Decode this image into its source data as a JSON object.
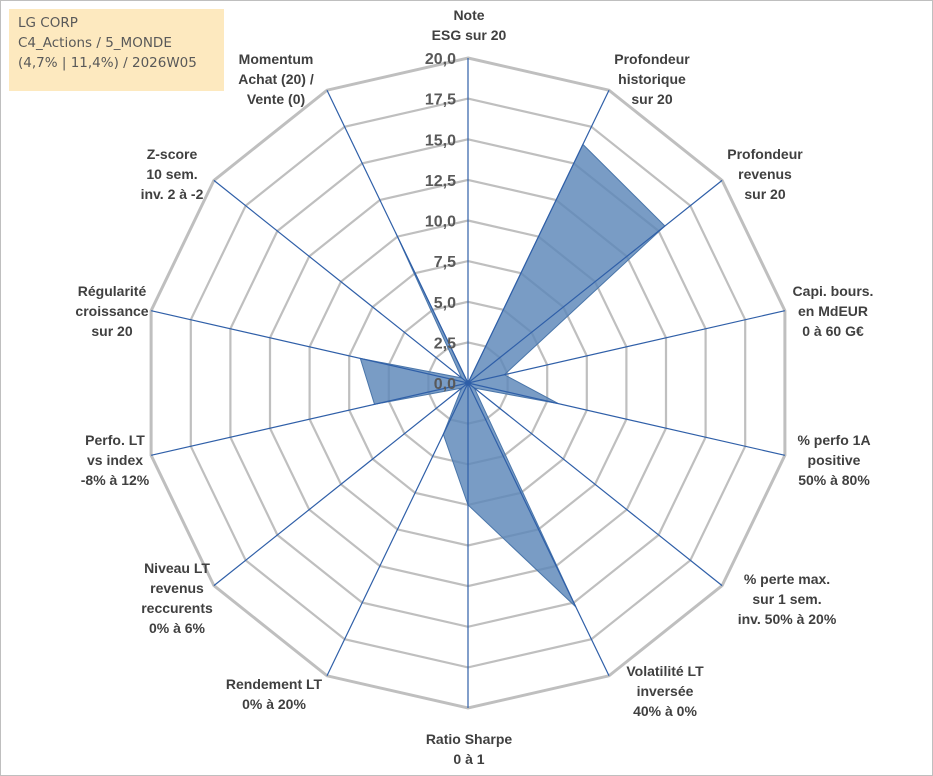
{
  "info_box": {
    "line1": "LG CORP",
    "line2": "C4_Actions / 5_MONDE",
    "line3": "(4,7% | 11,4%) / 2026W05"
  },
  "chart_data": {
    "type": "radar",
    "title": "",
    "rlim": [
      0,
      20
    ],
    "r_ticks": [
      "0,0",
      "2,5",
      "5,0",
      "7,5",
      "10,0",
      "12,5",
      "15,0",
      "17,5",
      "20,0"
    ],
    "grid": true,
    "legend": "none",
    "colors": {
      "fill": "#5b86b8",
      "grid": "#bfbfbf",
      "spoke": "#2f5fa8"
    },
    "axes": [
      [
        "Note",
        "ESG sur 20"
      ],
      [
        "Profondeur",
        "historique",
        "sur 20"
      ],
      [
        "Profondeur",
        "revenus",
        "sur 20"
      ],
      [
        "Capi. bours.",
        "en MdEUR",
        "0 à 60 G€"
      ],
      [
        "% perfo 1A",
        "positive",
        "50% à 80%"
      ],
      [
        "% perte max.",
        "sur 1 sem.",
        "inv. 50% à 20%"
      ],
      [
        "Volatilité LT",
        "inversée",
        "40% à 0%"
      ],
      [
        "Ratio Sharpe",
        "0 à 1"
      ],
      [
        "Rendement LT",
        "0% à 20%"
      ],
      [
        "Niveau LT",
        "revenus",
        "reccurents",
        "0% à 6%"
      ],
      [
        "Perfo. LT",
        "vs index",
        "-8% à 12%"
      ],
      [
        "Régularité",
        "croissance",
        "sur 20"
      ],
      [
        "Z-score",
        "10 sem.",
        "inv. 2 à -2"
      ],
      [
        "Momentum",
        "Achat (20) /",
        "Vente (0)"
      ]
    ],
    "series": [
      {
        "values": [
          0,
          16.3,
          15.5,
          2.3,
          5.7,
          0.5,
          15.3,
          7.5,
          3.5,
          0.5,
          5.9,
          6.8,
          0.5,
          10.3
        ]
      }
    ]
  }
}
